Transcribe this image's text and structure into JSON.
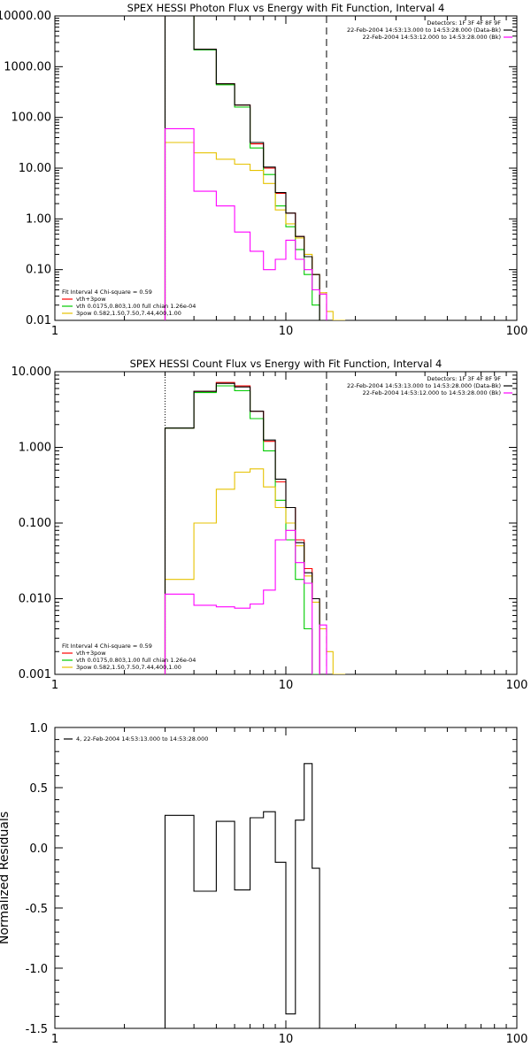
{
  "panels": [
    {
      "id": "photon",
      "title": "SPEX HESSI Photon Flux vs Energy with Fit Function, Interval 4",
      "ytick_labels": [
        "0.01",
        "0.10",
        "1.00",
        "10.00",
        "100.00",
        "1000.00",
        "10000.00"
      ],
      "info_lines": [
        "Detectors: 1F 3F 4F 8F 9F",
        "22-Feb-2004 14:53:13.000 to 14:53:28.000 (Data-Bk)",
        "22-Feb-2004 14:53:12.000 to 14:53:28.000 (Bk)"
      ],
      "legend_lines": [
        "Fit Interval  4    Chi-square = 0.59",
        "vth+3pow",
        "vth 0.0175,0.803,1.00  full chian 1.26e-04",
        "3pow 0.582,1.50,7.50,7.44,400,1.00"
      ]
    },
    {
      "id": "count",
      "title": "SPEX HESSI Count Flux vs Energy with Fit Function, Interval 4",
      "ytick_labels": [
        "0.001",
        "0.010",
        "0.100",
        "1.000",
        "10.000"
      ],
      "info_lines": [
        "Detectors: 1F 3F 4F 8F 9F",
        "22-Feb-2004 14:53:13.000 to 14:53:28.000 (Data-Bk)",
        "22-Feb-2004 14:53:12.000 to 14:53:28.000 (Bk)"
      ],
      "legend_lines": [
        "Fit Interval  4    Chi-square = 0.59",
        "vth+3pow",
        "vth 0.0175,0.803,1.00  full chian 1.26e-04",
        "3pow 0.582,1.50,7.50,7.44,400,1.00"
      ]
    },
    {
      "id": "residuals",
      "ylabel": "Normalized Residuals",
      "ytick_labels": [
        "-1.5",
        "-1.0",
        "-0.5",
        "0.0",
        "0.5",
        "1.0"
      ],
      "legend_lines": [
        "4, 22-Feb-2004 14:53:13.000 to 14:53:28.000"
      ]
    }
  ],
  "xtick_labels": [
    "1",
    "10",
    "100"
  ],
  "chart_data": [
    {
      "type": "line",
      "title": "SPEX HESSI Photon Flux vs Energy with Fit Function, Interval 4",
      "xlabel": "",
      "ylabel": "",
      "xscale": "log",
      "yscale": "log",
      "xlim": [
        1,
        100
      ],
      "ylim": [
        0.01,
        10000
      ],
      "grid": false,
      "legend": "bottom-left",
      "markers": {
        "dotted_x": 3,
        "dashed_x": 15
      },
      "bin_edges": [
        3,
        4,
        5,
        6,
        7,
        8,
        9,
        10,
        11,
        12,
        13,
        14,
        15,
        16,
        18
      ],
      "series": [
        {
          "name": "vth+3pow",
          "color": "#ff0000",
          "values": [
            10000,
            2200,
            460,
            175,
            30,
            10,
            3.2,
            1.3,
            0.45,
            0.18,
            0.08,
            null,
            null,
            null
          ]
        },
        {
          "name": "vth 0.0175,0.803,1.00  full chian 1.26e-04",
          "color": "#00cc00",
          "values": [
            10000,
            2150,
            440,
            160,
            25,
            7.5,
            1.8,
            0.7,
            0.25,
            0.08,
            0.02,
            null,
            null,
            null
          ]
        },
        {
          "name": "3pow 0.582,1.50,7.50,7.44,400,1.00",
          "color": "#e6c200",
          "values": [
            32,
            20,
            15,
            12,
            9,
            5,
            1.5,
            0.8,
            0.42,
            0.2,
            0.08,
            0.035,
            0.015,
            0.01
          ]
        },
        {
          "color": "#000000",
          "values": [
            10000,
            2200,
            460,
            175,
            32,
            10.5,
            3.3,
            1.3,
            0.45,
            0.18,
            0.08,
            null,
            null,
            null
          ]
        },
        {
          "color": "#ff00ff",
          "values": [
            60,
            3.5,
            1.8,
            0.55,
            0.23,
            0.1,
            0.16,
            0.38,
            0.16,
            0.1,
            0.04,
            0.033,
            null,
            null
          ]
        }
      ]
    },
    {
      "type": "line",
      "title": "SPEX HESSI Count Flux vs Energy with Fit Function, Interval 4",
      "xlabel": "",
      "ylabel": "",
      "xscale": "log",
      "yscale": "log",
      "xlim": [
        1,
        100
      ],
      "ylim": [
        0.001,
        10
      ],
      "grid": false,
      "legend": "bottom-left",
      "markers": {
        "dotted_x": 3,
        "dashed_x": 15
      },
      "bin_edges": [
        3,
        4,
        5,
        6,
        7,
        8,
        9,
        10,
        11,
        12,
        13,
        14,
        15,
        16,
        18
      ],
      "series": [
        {
          "name": "vth+3pow",
          "color": "#ff0000",
          "values": [
            1.8,
            5.5,
            7.2,
            6.5,
            3.0,
            1.2,
            0.35,
            0.16,
            0.06,
            0.025,
            0.01,
            null,
            null,
            null
          ]
        },
        {
          "name": "vth 0.0175,0.803,1.00  full chian 1.26e-04",
          "color": "#00cc00",
          "values": [
            1.8,
            5.3,
            6.5,
            5.6,
            2.4,
            0.9,
            0.2,
            0.06,
            0.018,
            0.004,
            0.001,
            null,
            null,
            null
          ]
        },
        {
          "name": "3pow 0.582,1.50,7.50,7.44,400,1.00",
          "color": "#e6c200",
          "values": [
            0.018,
            0.1,
            0.28,
            0.47,
            0.52,
            0.3,
            0.16,
            0.1,
            0.05,
            0.02,
            0.009,
            0.004,
            0.002,
            0.001
          ]
        },
        {
          "color": "#000000",
          "values": [
            1.8,
            5.5,
            7.0,
            6.3,
            3.0,
            1.25,
            0.38,
            0.16,
            0.055,
            0.022,
            0.01,
            null,
            null,
            null
          ]
        },
        {
          "color": "#ff00ff",
          "values": [
            0.0115,
            0.0082,
            0.0078,
            0.0075,
            0.0085,
            0.013,
            0.06,
            0.08,
            0.03,
            0.016,
            null,
            0.0045,
            null,
            null
          ]
        }
      ]
    },
    {
      "type": "line",
      "xlabel": "",
      "ylabel": "Normalized Residuals",
      "xscale": "log",
      "xlim": [
        1,
        100
      ],
      "ylim": [
        -1.5,
        1.0
      ],
      "grid": false,
      "legend": "top-left",
      "bin_edges": [
        3,
        4,
        5,
        6,
        7,
        8,
        9,
        10,
        11,
        12,
        13,
        14,
        15
      ],
      "series": [
        {
          "name": "4, 22-Feb-2004 14:53:13.000 to 14:53:28.000",
          "color": "#000000",
          "values": [
            0.27,
            -0.36,
            0.22,
            -0.35,
            0.25,
            0.3,
            -0.12,
            -1.38,
            0.23,
            0.7,
            -0.17,
            null
          ]
        }
      ]
    }
  ]
}
